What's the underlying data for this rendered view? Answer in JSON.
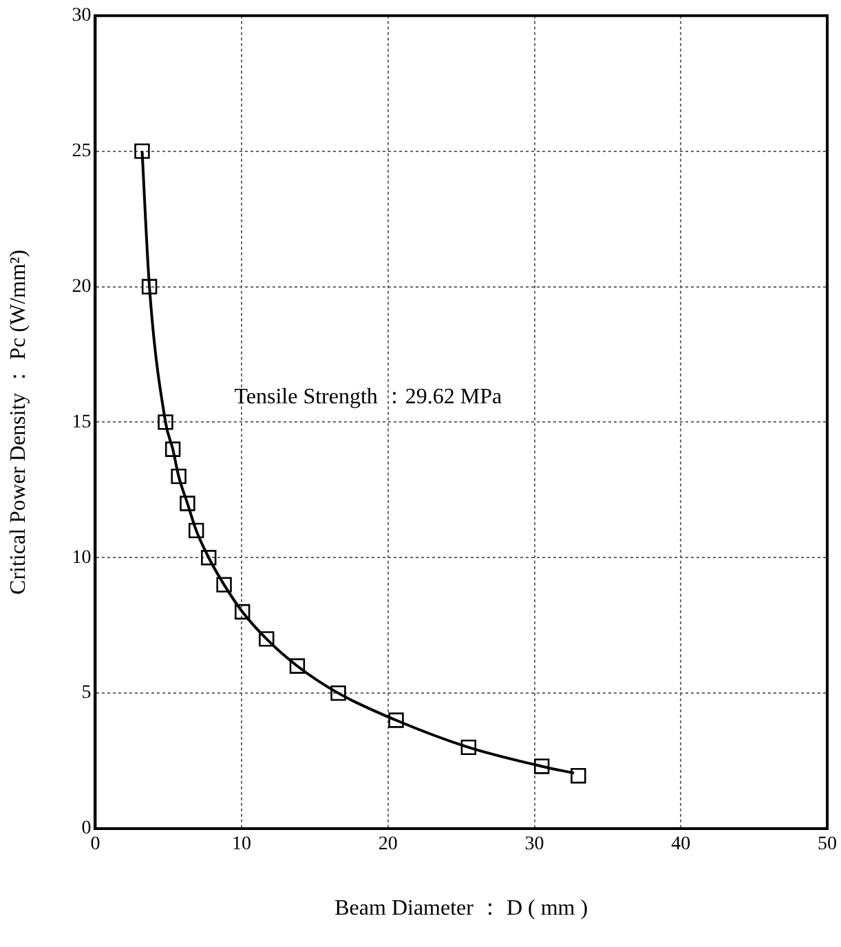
{
  "chart_data": {
    "type": "scatter",
    "xlabel": "Beam Diameter ： D ( mm )",
    "ylabel": "Critical Power Density ： Pc (W/mm²)",
    "annotations": [
      "Tensile Strength ：29.62 MPa"
    ],
    "xlim": [
      0,
      50
    ],
    "xticks": [
      0,
      10,
      20,
      30,
      40,
      50
    ],
    "ylim": [
      0,
      30
    ],
    "yticks": [
      0,
      5,
      10,
      15,
      20,
      25,
      30
    ],
    "grid": true,
    "marker": "square",
    "series": [
      {
        "color": "#000000",
        "x": [
          3.2,
          3.7,
          4.8,
          5.3,
          5.7,
          6.3,
          6.9,
          7.75,
          8.8,
          10.05,
          11.7,
          13.8,
          16.6,
          20.55,
          25.5,
          30.5,
          33.0
        ],
        "values": [
          25,
          20,
          15,
          14,
          13,
          12,
          11,
          10,
          9,
          8,
          7,
          6,
          5,
          4,
          3,
          2.3,
          1.95
        ]
      },
      {
        "type": "line",
        "color": "#000000",
        "marker": "none",
        "x": [
          3.2,
          3.7,
          4.8,
          5.3,
          5.7,
          6.3,
          6.9,
          7.75,
          8.8,
          10.05,
          11.7,
          13.8,
          16.6,
          20.55,
          25.5,
          30.5,
          32.7
        ],
        "values": [
          25,
          20,
          15,
          14,
          13,
          12,
          11,
          10,
          9,
          8,
          7,
          6,
          5,
          4,
          3,
          2.3,
          2.05
        ]
      }
    ]
  }
}
